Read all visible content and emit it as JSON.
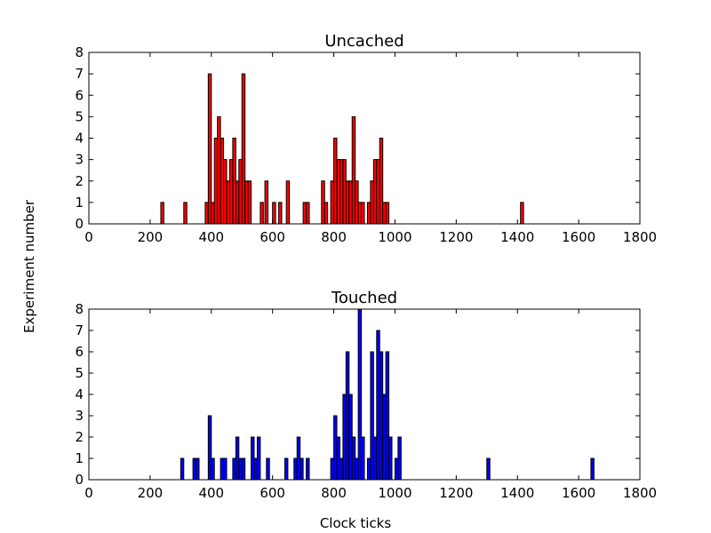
{
  "figure": {
    "ylabel": "Experiment number",
    "xlabel": "Clock ticks"
  },
  "chart_data": [
    {
      "type": "bar",
      "title": "Uncached",
      "color": "#ff0000",
      "edge_color": "#000000",
      "bin_width": 10,
      "xlim": [
        0,
        1800
      ],
      "ylim": [
        0,
        8
      ],
      "xticks": [
        0,
        200,
        400,
        600,
        800,
        1000,
        1200,
        1400,
        1600,
        1800
      ],
      "yticks": [
        0,
        1,
        2,
        3,
        4,
        5,
        6,
        7,
        8
      ],
      "bins": [
        {
          "x": 240,
          "count": 1
        },
        {
          "x": 315,
          "count": 1
        },
        {
          "x": 385,
          "count": 1
        },
        {
          "x": 395,
          "count": 7
        },
        {
          "x": 405,
          "count": 1
        },
        {
          "x": 415,
          "count": 4
        },
        {
          "x": 425,
          "count": 5
        },
        {
          "x": 435,
          "count": 4
        },
        {
          "x": 445,
          "count": 3
        },
        {
          "x": 455,
          "count": 2
        },
        {
          "x": 465,
          "count": 3
        },
        {
          "x": 475,
          "count": 4
        },
        {
          "x": 485,
          "count": 2
        },
        {
          "x": 495,
          "count": 3
        },
        {
          "x": 505,
          "count": 7
        },
        {
          "x": 515,
          "count": 2
        },
        {
          "x": 525,
          "count": 2
        },
        {
          "x": 565,
          "count": 1
        },
        {
          "x": 580,
          "count": 2
        },
        {
          "x": 605,
          "count": 1
        },
        {
          "x": 625,
          "count": 1
        },
        {
          "x": 650,
          "count": 2
        },
        {
          "x": 705,
          "count": 1
        },
        {
          "x": 715,
          "count": 1
        },
        {
          "x": 765,
          "count": 2
        },
        {
          "x": 775,
          "count": 1
        },
        {
          "x": 795,
          "count": 2
        },
        {
          "x": 805,
          "count": 4
        },
        {
          "x": 815,
          "count": 3
        },
        {
          "x": 825,
          "count": 3
        },
        {
          "x": 835,
          "count": 3
        },
        {
          "x": 845,
          "count": 2
        },
        {
          "x": 855,
          "count": 2
        },
        {
          "x": 865,
          "count": 5
        },
        {
          "x": 875,
          "count": 2
        },
        {
          "x": 885,
          "count": 1
        },
        {
          "x": 895,
          "count": 1
        },
        {
          "x": 915,
          "count": 1
        },
        {
          "x": 925,
          "count": 2
        },
        {
          "x": 935,
          "count": 3
        },
        {
          "x": 945,
          "count": 3
        },
        {
          "x": 955,
          "count": 4
        },
        {
          "x": 965,
          "count": 1
        },
        {
          "x": 975,
          "count": 1
        },
        {
          "x": 1415,
          "count": 1
        }
      ]
    },
    {
      "type": "bar",
      "title": "Touched",
      "color": "#0000ff",
      "edge_color": "#000000",
      "bin_width": 10,
      "xlim": [
        0,
        1800
      ],
      "ylim": [
        0,
        8
      ],
      "xticks": [
        0,
        200,
        400,
        600,
        800,
        1000,
        1200,
        1400,
        1600,
        1800
      ],
      "yticks": [
        0,
        1,
        2,
        3,
        4,
        5,
        6,
        7,
        8
      ],
      "bins": [
        {
          "x": 305,
          "count": 1
        },
        {
          "x": 345,
          "count": 1
        },
        {
          "x": 355,
          "count": 1
        },
        {
          "x": 395,
          "count": 3
        },
        {
          "x": 405,
          "count": 1
        },
        {
          "x": 435,
          "count": 1
        },
        {
          "x": 445,
          "count": 1
        },
        {
          "x": 475,
          "count": 1
        },
        {
          "x": 485,
          "count": 2
        },
        {
          "x": 495,
          "count": 1
        },
        {
          "x": 505,
          "count": 1
        },
        {
          "x": 535,
          "count": 2
        },
        {
          "x": 545,
          "count": 1
        },
        {
          "x": 555,
          "count": 2
        },
        {
          "x": 585,
          "count": 1
        },
        {
          "x": 645,
          "count": 1
        },
        {
          "x": 675,
          "count": 1
        },
        {
          "x": 685,
          "count": 2
        },
        {
          "x": 695,
          "count": 1
        },
        {
          "x": 715,
          "count": 1
        },
        {
          "x": 795,
          "count": 1
        },
        {
          "x": 805,
          "count": 3
        },
        {
          "x": 815,
          "count": 2
        },
        {
          "x": 825,
          "count": 1
        },
        {
          "x": 835,
          "count": 4
        },
        {
          "x": 845,
          "count": 6
        },
        {
          "x": 855,
          "count": 4
        },
        {
          "x": 865,
          "count": 2
        },
        {
          "x": 875,
          "count": 1
        },
        {
          "x": 885,
          "count": 8
        },
        {
          "x": 895,
          "count": 2
        },
        {
          "x": 915,
          "count": 1
        },
        {
          "x": 925,
          "count": 6
        },
        {
          "x": 935,
          "count": 2
        },
        {
          "x": 945,
          "count": 7
        },
        {
          "x": 955,
          "count": 6
        },
        {
          "x": 965,
          "count": 4
        },
        {
          "x": 975,
          "count": 6
        },
        {
          "x": 985,
          "count": 2
        },
        {
          "x": 1005,
          "count": 1
        },
        {
          "x": 1015,
          "count": 2
        },
        {
          "x": 1305,
          "count": 1
        },
        {
          "x": 1645,
          "count": 1
        }
      ]
    }
  ]
}
